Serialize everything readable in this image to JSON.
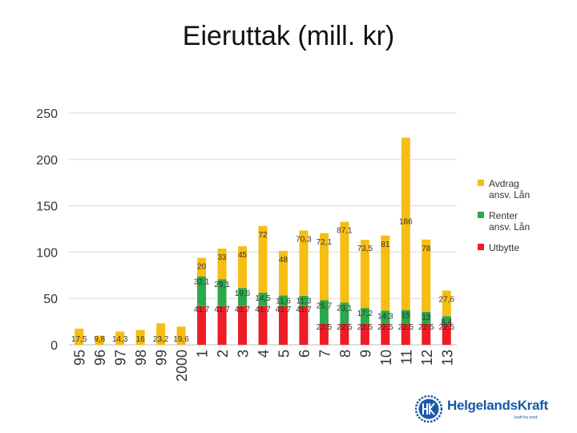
{
  "title": "Eieruttak (mill. kr)",
  "colors": {
    "avdrag": "#f6bd13",
    "renter": "#2aa84a",
    "utbytte": "#ee1c25",
    "grid": "#d9d9d9",
    "axis": "#444444",
    "logo": "#1a58a6"
  },
  "legend": [
    {
      "line1": "Avdrag",
      "line2": "ansv. Lån",
      "color": "#f6bd13"
    },
    {
      "line1": "Renter",
      "line2": "ansv. Lån",
      "color": "#2aa84a"
    },
    {
      "line1": "Utbytte",
      "line2": "",
      "color": "#ee1c25"
    }
  ],
  "logo": {
    "text": "HelgelandsKraft",
    "tagline": "kraft fra nord",
    "icon": "hk-gear-logo-icon"
  },
  "chart_data": {
    "type": "bar",
    "stacked": true,
    "categories": [
      "95",
      "96",
      "97",
      "98",
      "99",
      "2000",
      "1",
      "2",
      "3",
      "4",
      "5",
      "6",
      "7",
      "8",
      "9",
      "10",
      "11",
      "12",
      "13"
    ],
    "series": [
      {
        "name": "Utbytte",
        "color": "#ee1c25",
        "values": [
          0,
          0,
          0,
          0,
          0,
          0,
          41.7,
          41.7,
          41.7,
          41.7,
          41.7,
          41.7,
          22.5,
          22.5,
          22.5,
          22.5,
          22.5,
          22.5,
          22.5
        ],
        "labels": [
          "",
          "",
          "",
          "",
          "",
          "",
          "41.7",
          "41.7",
          "41.7",
          "41.7",
          "41.7",
          "41.7",
          "22.5",
          "22.5",
          "22.5",
          "22.5",
          "22.5",
          "22.5",
          "22.5"
        ]
      },
      {
        "name": "Renter ansv. Lån",
        "color": "#2aa84a",
        "values": [
          0,
          0,
          0,
          0,
          0,
          0,
          32.1,
          29.1,
          19.6,
          14.5,
          11.6,
          11.3,
          25.7,
          23.1,
          17.2,
          14.3,
          15,
          13,
          8.4
        ],
        "labels": [
          "",
          "",
          "",
          "",
          "",
          "",
          "32,1",
          "29,1",
          "19,6",
          "14,5",
          "11,6",
          "11,3",
          "25,7",
          "23,1",
          "17,2",
          "14,3",
          "15",
          "13",
          "8,4"
        ]
      },
      {
        "name": "Avdrag ansv. Lån",
        "color": "#f6bd13",
        "values": [
          17.5,
          9.8,
          14.3,
          16,
          23.2,
          19.6,
          20,
          33,
          45,
          72,
          48,
          70.3,
          72.1,
          87.1,
          73.5,
          81,
          186,
          78,
          27.6
        ],
        "labels": [
          "17,5",
          "9,8",
          "14,3",
          "16",
          "23,2",
          "19,6",
          "20",
          "33",
          "45",
          "72",
          "48",
          "70,3",
          "72,1",
          "87,1",
          "73,5",
          "81",
          "186",
          "78",
          "27,6"
        ]
      }
    ],
    "ylim": [
      0,
      250
    ],
    "yticks": [
      0,
      50,
      100,
      150,
      200,
      250
    ],
    "grid": true,
    "legend_position": "right",
    "xlabel": "",
    "ylabel": ""
  }
}
